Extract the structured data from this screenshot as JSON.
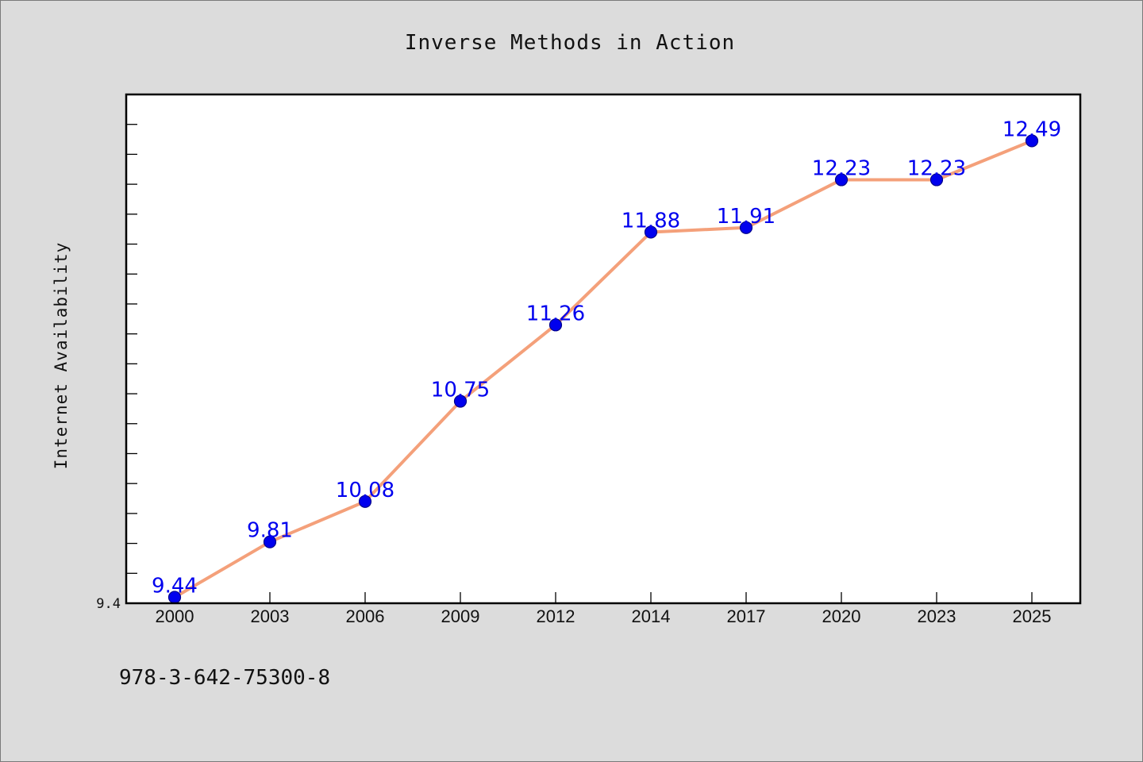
{
  "chart_data": {
    "type": "line",
    "title": "Inverse Methods in Action",
    "xlabel": "",
    "ylabel": "Internet Availability",
    "categories": [
      "2000",
      "2003",
      "2006",
      "2009",
      "2012",
      "2014",
      "2017",
      "2020",
      "2023",
      "2025"
    ],
    "series": [
      {
        "values": [
          9.44,
          9.81,
          10.08,
          10.75,
          11.26,
          11.88,
          11.91,
          12.23,
          12.23,
          12.49
        ],
        "labels": [
          "9.44",
          "9.81",
          "10.08",
          "10.75",
          "11.26",
          "11.88",
          "11.91",
          "12.23",
          "12.23",
          "12.49"
        ]
      }
    ],
    "ylim": [
      9.4,
      12.8
    ],
    "y_tick_labels": [
      "9.4"
    ],
    "grid": false,
    "legend": "none",
    "colors": {
      "line": "#f4a07a",
      "marker": "#0000ee",
      "marker_edge": "#00008b",
      "label": "#0000ee",
      "plot_bg": "#ffffff",
      "figure_bg": "#dcdcdc"
    }
  },
  "footer": {
    "isbn": "978-3-642-75300-8"
  }
}
